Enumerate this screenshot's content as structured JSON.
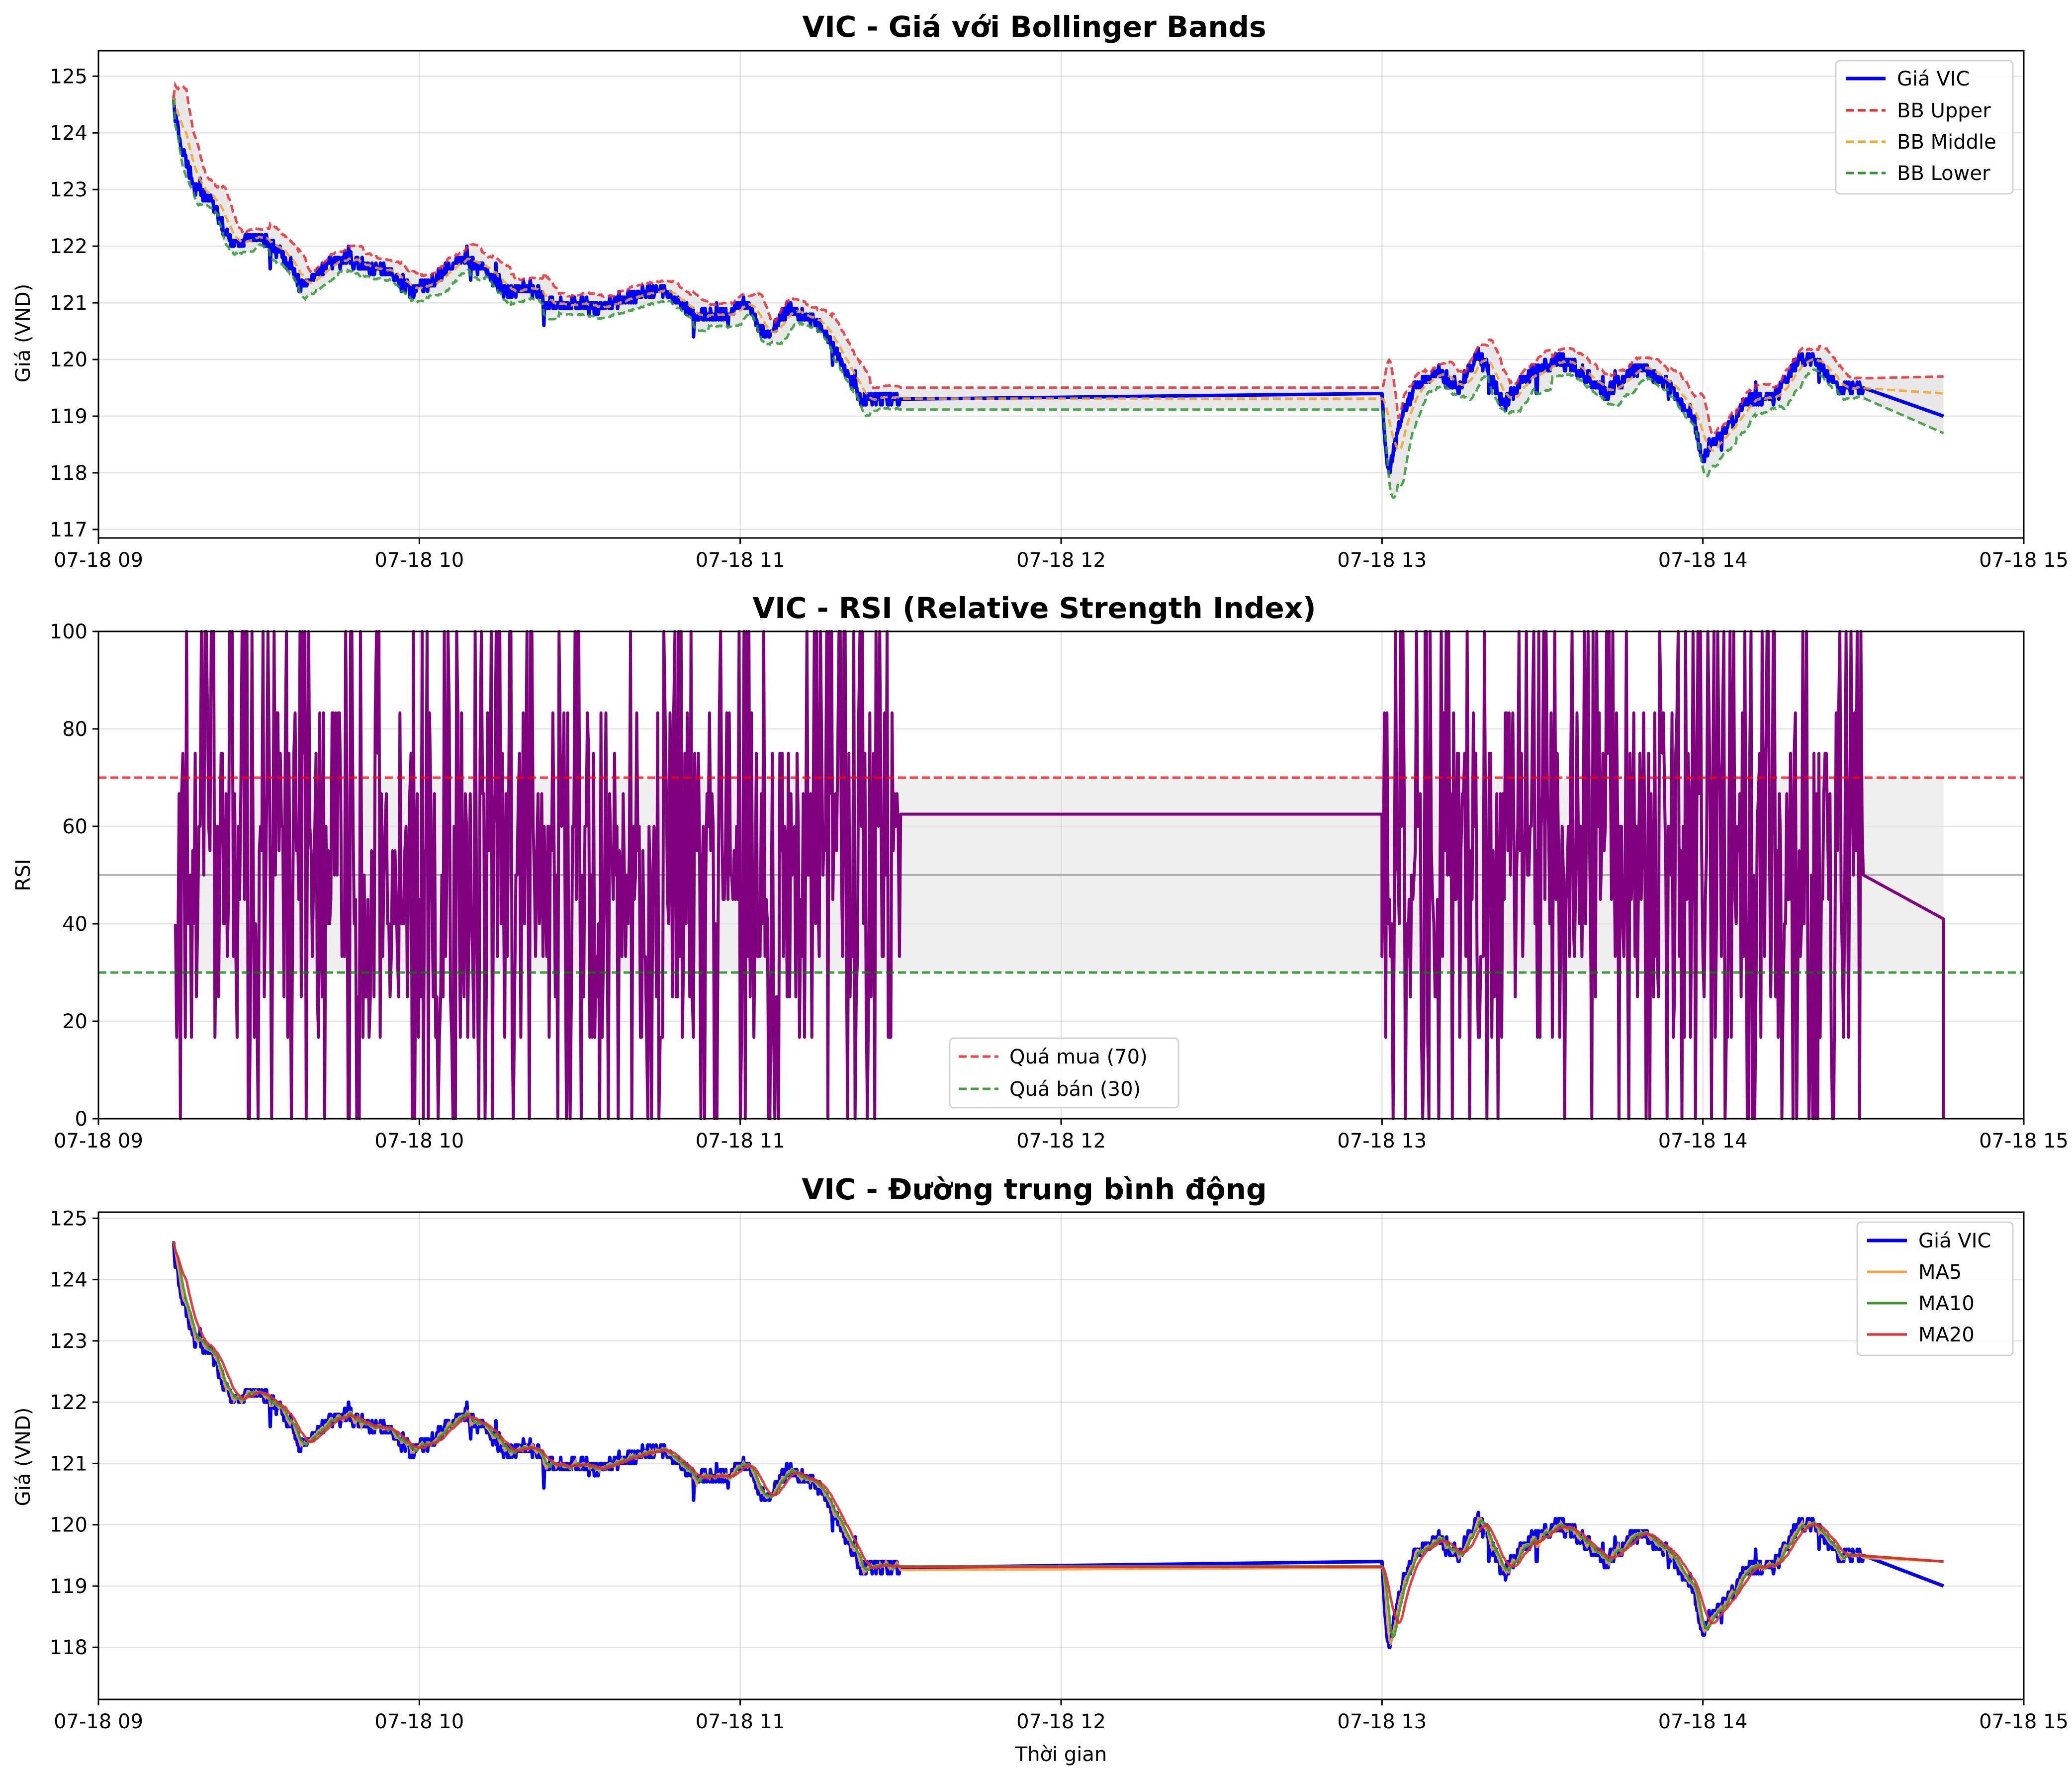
{
  "figure": {
    "x_tick_labels": [
      "07-18 09",
      "07-18 10",
      "07-18 11",
      "07-18 12",
      "07-18 13",
      "07-18 14",
      "07-18 15"
    ],
    "x_ticks_hours": [
      9,
      10,
      11,
      12,
      13,
      14,
      15
    ],
    "x_axis_label": "Thời gian",
    "colors": {
      "price": "#0000ff",
      "bb_upper": "#e8292b",
      "bb_middle": "#f5a623",
      "bb_lower": "#2e9a2e",
      "rsi": "#800080",
      "overbought": "#ff0000",
      "oversold": "#008000",
      "neutral": "#999999",
      "ma5": "#f7a340",
      "ma10": "#3a9a2a",
      "ma20": "#e8292b",
      "band_fill": "#d9d9d9"
    }
  },
  "chart_data": [
    {
      "type": "line",
      "title": "VIC - Giá với Bollinger Bands",
      "ylabel": "Giá (VND)",
      "xlabel": "",
      "xlim": [
        9.0,
        15.0
      ],
      "ylim": [
        116.85,
        125.45
      ],
      "y_ticks": [
        117,
        118,
        119,
        120,
        121,
        122,
        123,
        124,
        125
      ],
      "grid": true,
      "legend_position": "top-right",
      "legend": [
        "Giá VIC",
        "BB Upper",
        "BB Middle",
        "BB Lower"
      ],
      "price_anchor_points": [
        [
          9.23,
          124.6
        ],
        [
          9.26,
          123.7
        ],
        [
          9.3,
          123.0
        ],
        [
          9.35,
          122.8
        ],
        [
          9.42,
          122.0
        ],
        [
          9.5,
          122.2
        ],
        [
          9.58,
          121.8
        ],
        [
          9.63,
          121.3
        ],
        [
          9.7,
          121.6
        ],
        [
          9.77,
          121.8
        ],
        [
          9.85,
          121.6
        ],
        [
          9.92,
          121.5
        ],
        [
          9.98,
          121.2
        ],
        [
          10.05,
          121.4
        ],
        [
          10.12,
          121.8
        ],
        [
          10.2,
          121.6
        ],
        [
          10.27,
          121.2
        ],
        [
          10.35,
          121.3
        ],
        [
          10.4,
          121.0
        ],
        [
          10.5,
          121.0
        ],
        [
          10.55,
          120.9
        ],
        [
          10.62,
          121.0
        ],
        [
          10.7,
          121.2
        ],
        [
          10.78,
          121.2
        ],
        [
          10.85,
          120.8
        ],
        [
          10.95,
          120.8
        ],
        [
          11.02,
          121.0
        ],
        [
          11.08,
          120.4
        ],
        [
          11.15,
          120.9
        ],
        [
          11.25,
          120.6
        ],
        [
          11.33,
          119.8
        ],
        [
          11.38,
          119.3
        ],
        [
          11.5,
          119.3
        ],
        [
          13.0,
          119.3
        ],
        [
          13.02,
          118.0
        ],
        [
          13.06,
          119.0
        ],
        [
          13.1,
          119.5
        ],
        [
          13.17,
          119.8
        ],
        [
          13.24,
          119.5
        ],
        [
          13.3,
          120.1
        ],
        [
          13.38,
          119.2
        ],
        [
          13.45,
          119.7
        ],
        [
          13.55,
          120.0
        ],
        [
          13.62,
          119.8
        ],
        [
          13.7,
          119.4
        ],
        [
          13.8,
          119.9
        ],
        [
          13.9,
          119.5
        ],
        [
          13.97,
          119.0
        ],
        [
          14.0,
          118.2
        ],
        [
          14.07,
          118.8
        ],
        [
          14.15,
          119.3
        ],
        [
          14.22,
          119.3
        ],
        [
          14.3,
          120.0
        ],
        [
          14.35,
          120.0
        ],
        [
          14.42,
          119.5
        ],
        [
          14.5,
          119.5
        ],
        [
          14.75,
          119.0
        ]
      ],
      "bb_upper_end": 119.7,
      "bb_middle_end": 119.4,
      "bb_lower_end": 118.7
    },
    {
      "type": "line",
      "title": "VIC - RSI (Relative Strength Index)",
      "ylabel": "RSI",
      "xlabel": "",
      "xlim": [
        9.0,
        15.0
      ],
      "ylim": [
        0,
        100
      ],
      "y_ticks": [
        0,
        20,
        40,
        60,
        80,
        100
      ],
      "grid": true,
      "legend_position": "bottom-center",
      "reference_lines": [
        {
          "name": "Quá mua (70)",
          "value": 70
        },
        {
          "name": "Quá bán (30)",
          "value": 30
        },
        {
          "value": 50
        }
      ],
      "shaded_band": [
        30,
        70
      ],
      "flat_segments": [
        {
          "x_start": 11.5,
          "x_end": 13.0,
          "value": 62.5
        },
        {
          "x_start": 14.5,
          "x_end": 14.75,
          "value_start": 50,
          "value_end": 41
        }
      ]
    },
    {
      "type": "line",
      "title": "VIC - Đường trung bình động",
      "ylabel": "Giá (VND)",
      "xlabel": "Thời gian",
      "xlim": [
        9.0,
        15.0
      ],
      "ylim": [
        117.15,
        125.1
      ],
      "y_ticks": [
        118,
        119,
        120,
        121,
        122,
        123,
        124,
        125
      ],
      "grid": true,
      "legend_position": "top-right",
      "legend": [
        "Giá VIC",
        "MA5",
        "MA10",
        "MA20"
      ],
      "ma_end_values": {
        "MA5": 119.4,
        "MA10": 119.4,
        "MA20": 119.4
      }
    }
  ]
}
